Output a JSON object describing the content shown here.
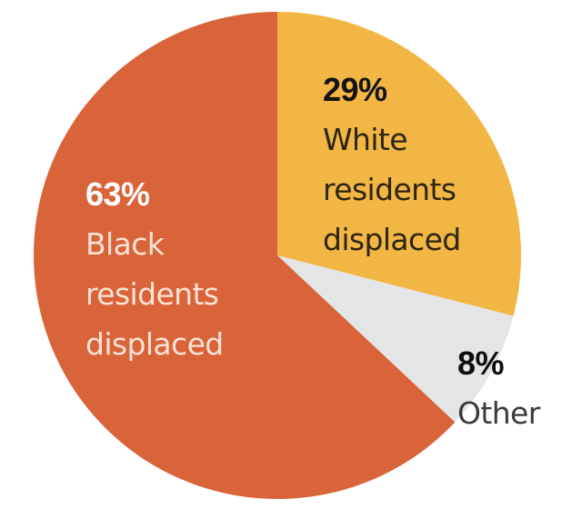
{
  "chart_data": {
    "type": "pie",
    "title": "",
    "start_angle": "top (12 o'clock), clockwise",
    "slices": [
      {
        "key": "white",
        "percent_label": "29%",
        "value": 29,
        "label_lines": [
          "White",
          "residents",
          "displaced"
        ],
        "color": "#F2B644"
      },
      {
        "key": "other",
        "percent_label": "8%",
        "value": 8,
        "label_lines": [
          "Other"
        ],
        "color": "#E4E5E7"
      },
      {
        "key": "black",
        "percent_label": "63%",
        "value": 63,
        "label_lines": [
          "Black",
          "residents",
          "displaced"
        ],
        "color": "#D9643A"
      }
    ],
    "legend": "none (labels placed directly on slices)"
  },
  "labels": {
    "white": {
      "pct": "29%",
      "line1": "White",
      "line2": "residents",
      "line3": "displaced"
    },
    "other": {
      "pct": "8%",
      "line1": "Other"
    },
    "black": {
      "pct": "63%",
      "line1": "Black",
      "line2": "residents",
      "line3": "displaced"
    }
  }
}
